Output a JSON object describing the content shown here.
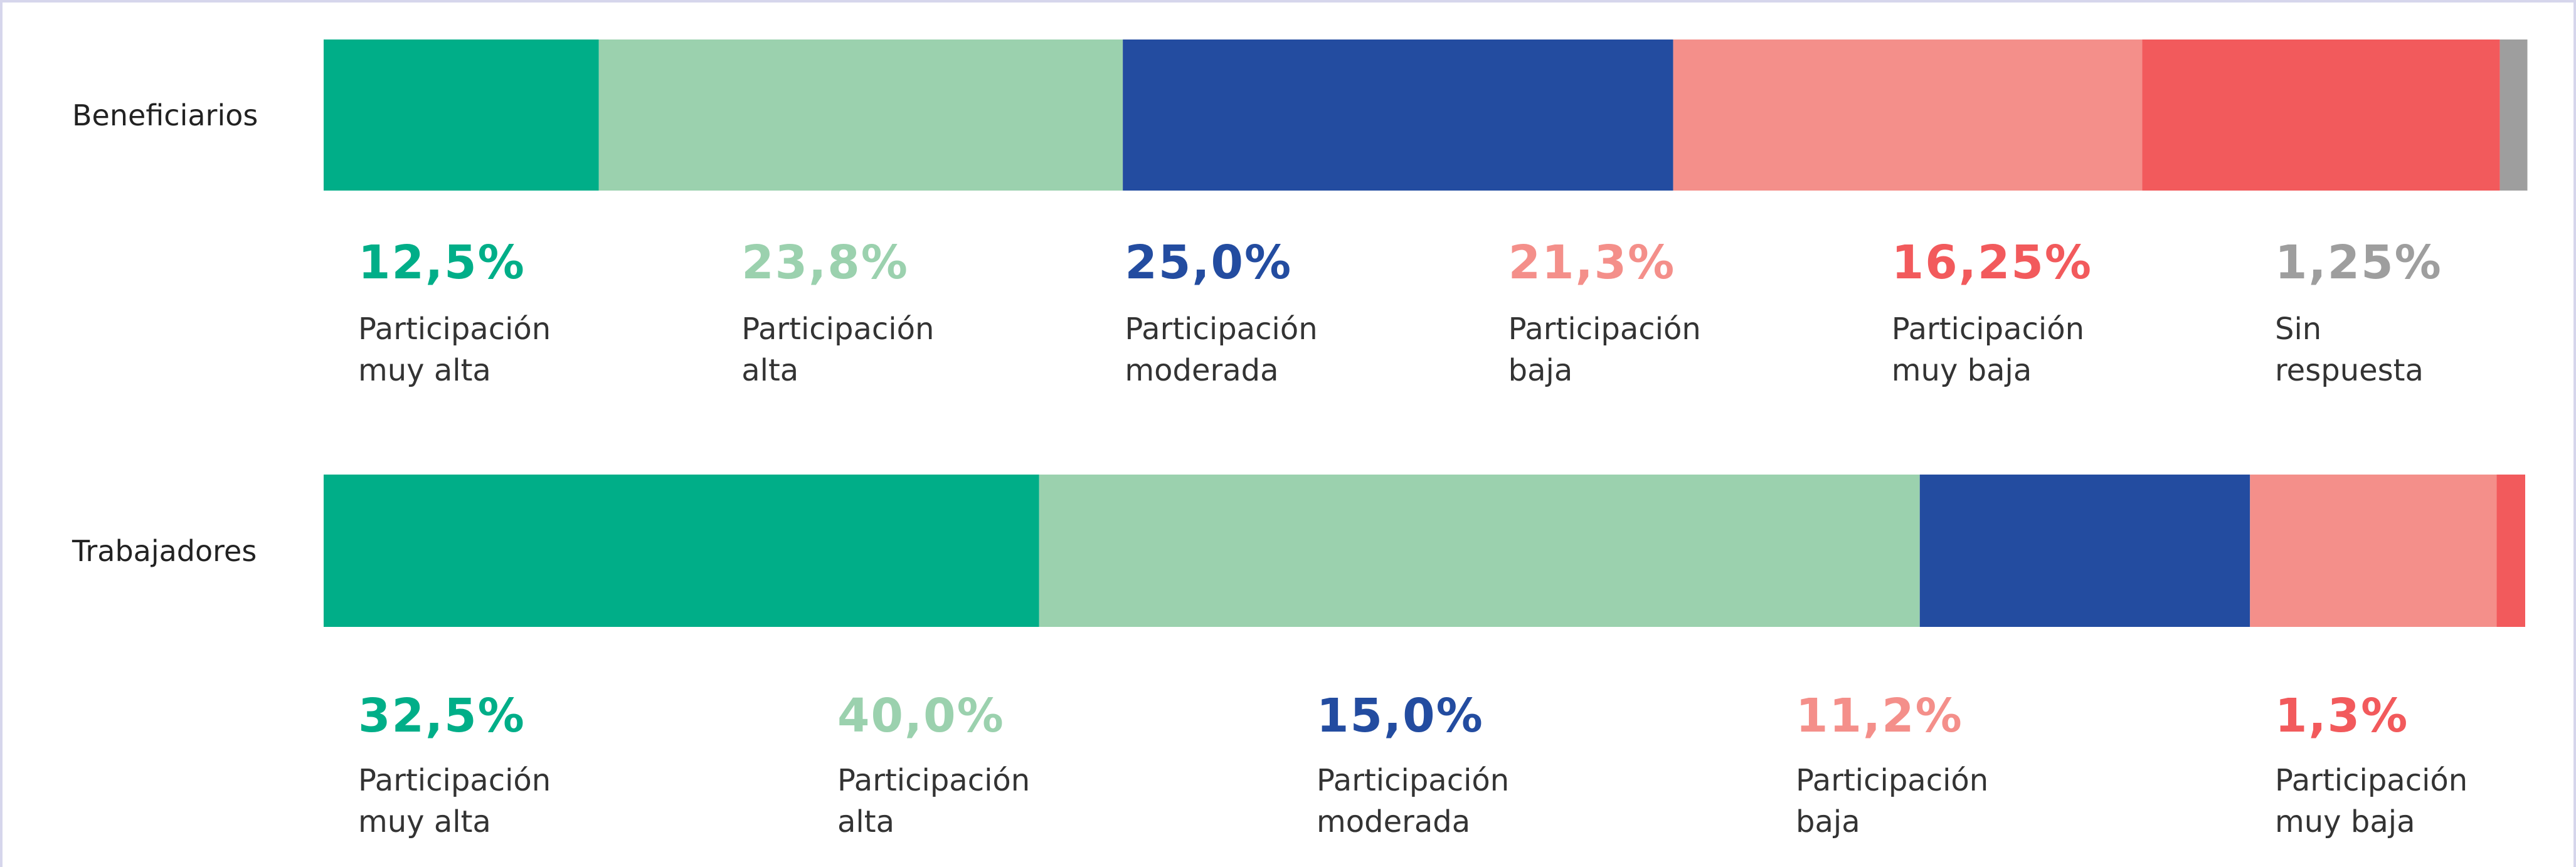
{
  "chart_data": [
    {
      "type": "stacked_bar",
      "title": "Beneficiarios",
      "categories": [
        "Participación\nmuy alta",
        "Participación\nalta",
        "Participación\nmoderada",
        "Participación\nbaja",
        "Participación\nmuy baja",
        "Sin\nrespuesta"
      ],
      "values": [
        12.5,
        23.8,
        25.0,
        21.3,
        16.25,
        1.25
      ],
      "value_labels": [
        "12,5%",
        "23,8%",
        "25,0%",
        "21,3%",
        "16,25%",
        "1,25%"
      ],
      "colors": [
        "#00ae88",
        "#9bd1ae",
        "#234ca0",
        "#f48f8a",
        "#f25a5c",
        "#9e9e9e"
      ],
      "xlim": [
        0,
        100
      ]
    },
    {
      "type": "stacked_bar",
      "title": "Trabajadores",
      "categories": [
        "Participación\nmuy alta",
        "Participación\nalta",
        "Participación\nmoderada",
        "Participación\nbaja",
        "Participación\nmuy baja"
      ],
      "values": [
        32.5,
        40.0,
        15.0,
        11.2,
        1.3
      ],
      "value_labels": [
        "32,5%",
        "40,0%",
        "15,0%",
        "11,2%",
        "1,3%"
      ],
      "colors": [
        "#00ae88",
        "#9bd1ae",
        "#234ca0",
        "#f48f8a",
        "#f25a5c"
      ],
      "xlim": [
        0,
        100
      ]
    }
  ]
}
